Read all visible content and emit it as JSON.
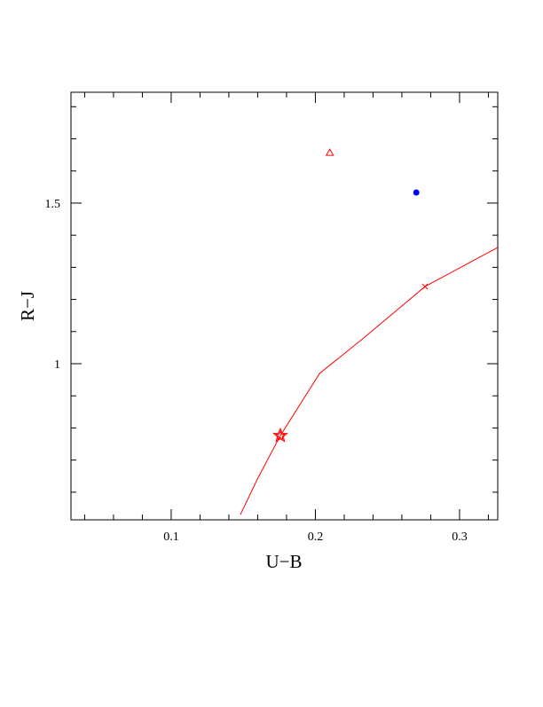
{
  "chart_data": {
    "type": "scatter",
    "xlabel": "U−B",
    "ylabel": "R−J",
    "xlim": [
      0.0305,
      0.3265
    ],
    "ylim": [
      0.514,
      1.845
    ],
    "xticks": [
      0.1,
      0.2,
      0.3
    ],
    "yticks": [
      1,
      1.5
    ],
    "xminorticks": [
      0.04,
      0.06,
      0.08,
      0.12,
      0.14,
      0.16,
      0.18,
      0.22,
      0.24,
      0.26,
      0.28,
      0.32
    ],
    "yminorticks": [
      0.6,
      0.7,
      0.8,
      0.9,
      1.1,
      1.2,
      1.3,
      1.4,
      1.6,
      1.7,
      1.8
    ],
    "series": [
      {
        "marker": "line",
        "color": "#ff0000",
        "x": [
          0.148,
          0.1597,
          0.1757,
          0.203,
          0.2335,
          0.276,
          0.3265
        ],
        "values": [
          0.53,
          0.64,
          0.776,
          0.97,
          1.08,
          1.24,
          1.362
        ]
      },
      {
        "marker": "triangle",
        "color": "#ff0000",
        "x": [
          0.21
        ],
        "values": [
          1.657
        ]
      },
      {
        "marker": "circle",
        "color": "#0000ff",
        "x": [
          0.27
        ],
        "values": [
          1.533
        ]
      },
      {
        "marker": "star",
        "color": "#ff0000",
        "x": [
          0.1757
        ],
        "values": [
          0.776
        ]
      },
      {
        "marker": "cross",
        "color": "#ff0000",
        "x": [
          0.276
        ],
        "values": [
          1.24
        ]
      }
    ]
  }
}
